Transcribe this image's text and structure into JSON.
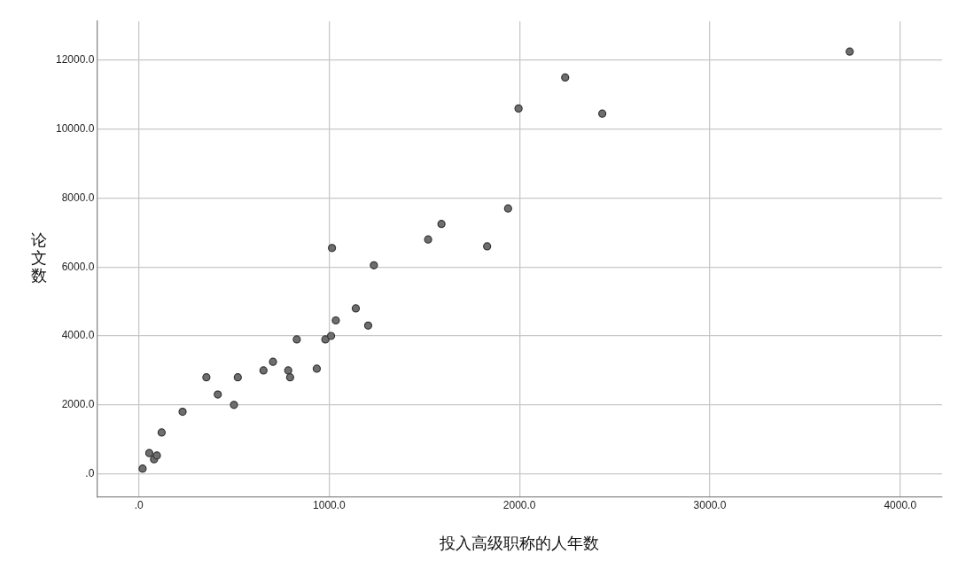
{
  "chart_data": {
    "type": "scatter",
    "xlabel": "投入高级职称的人年数",
    "ylabel": "论文数",
    "x": [
      20,
      55,
      80,
      95,
      120,
      230,
      355,
      415,
      500,
      520,
      655,
      705,
      785,
      795,
      830,
      935,
      980,
      1010,
      1035,
      1140,
      1205,
      1015,
      1235,
      1520,
      1590,
      1830,
      1940,
      1995,
      2240,
      2435,
      3735
    ],
    "series": [
      {
        "color": "#6e6e6e",
        "values": [
          150,
          600,
          420,
          530,
          1200,
          1800,
          2800,
          2300,
          2000,
          2800,
          3000,
          3250,
          3000,
          2800,
          3900,
          3050,
          3900,
          4000,
          4450,
          4800,
          4300,
          6550,
          6050,
          6800,
          7250,
          6600,
          7700,
          10600,
          11500,
          10450,
          12250
        ]
      }
    ],
    "xlim": [
      -220,
      4220
    ],
    "ylim": [
      -670,
      13130
    ],
    "xticks": [
      {
        "value": 0,
        "label": ".0"
      },
      {
        "value": 1000,
        "label": "1000.0"
      },
      {
        "value": 2000,
        "label": "2000.0"
      },
      {
        "value": 3000,
        "label": "3000.0"
      },
      {
        "value": 4000,
        "label": "4000.0"
      }
    ],
    "yticks": [
      {
        "value": 0,
        "label": ".0"
      },
      {
        "value": 2000,
        "label": "2000.0"
      },
      {
        "value": 4000,
        "label": "4000.0"
      },
      {
        "value": 6000,
        "label": "6000.0"
      },
      {
        "value": 8000,
        "label": "8000.0"
      },
      {
        "value": 10000,
        "label": "10000.0"
      },
      {
        "value": 12000,
        "label": "12000.0"
      }
    ],
    "grid": true,
    "marker": "circle",
    "legend": false
  }
}
